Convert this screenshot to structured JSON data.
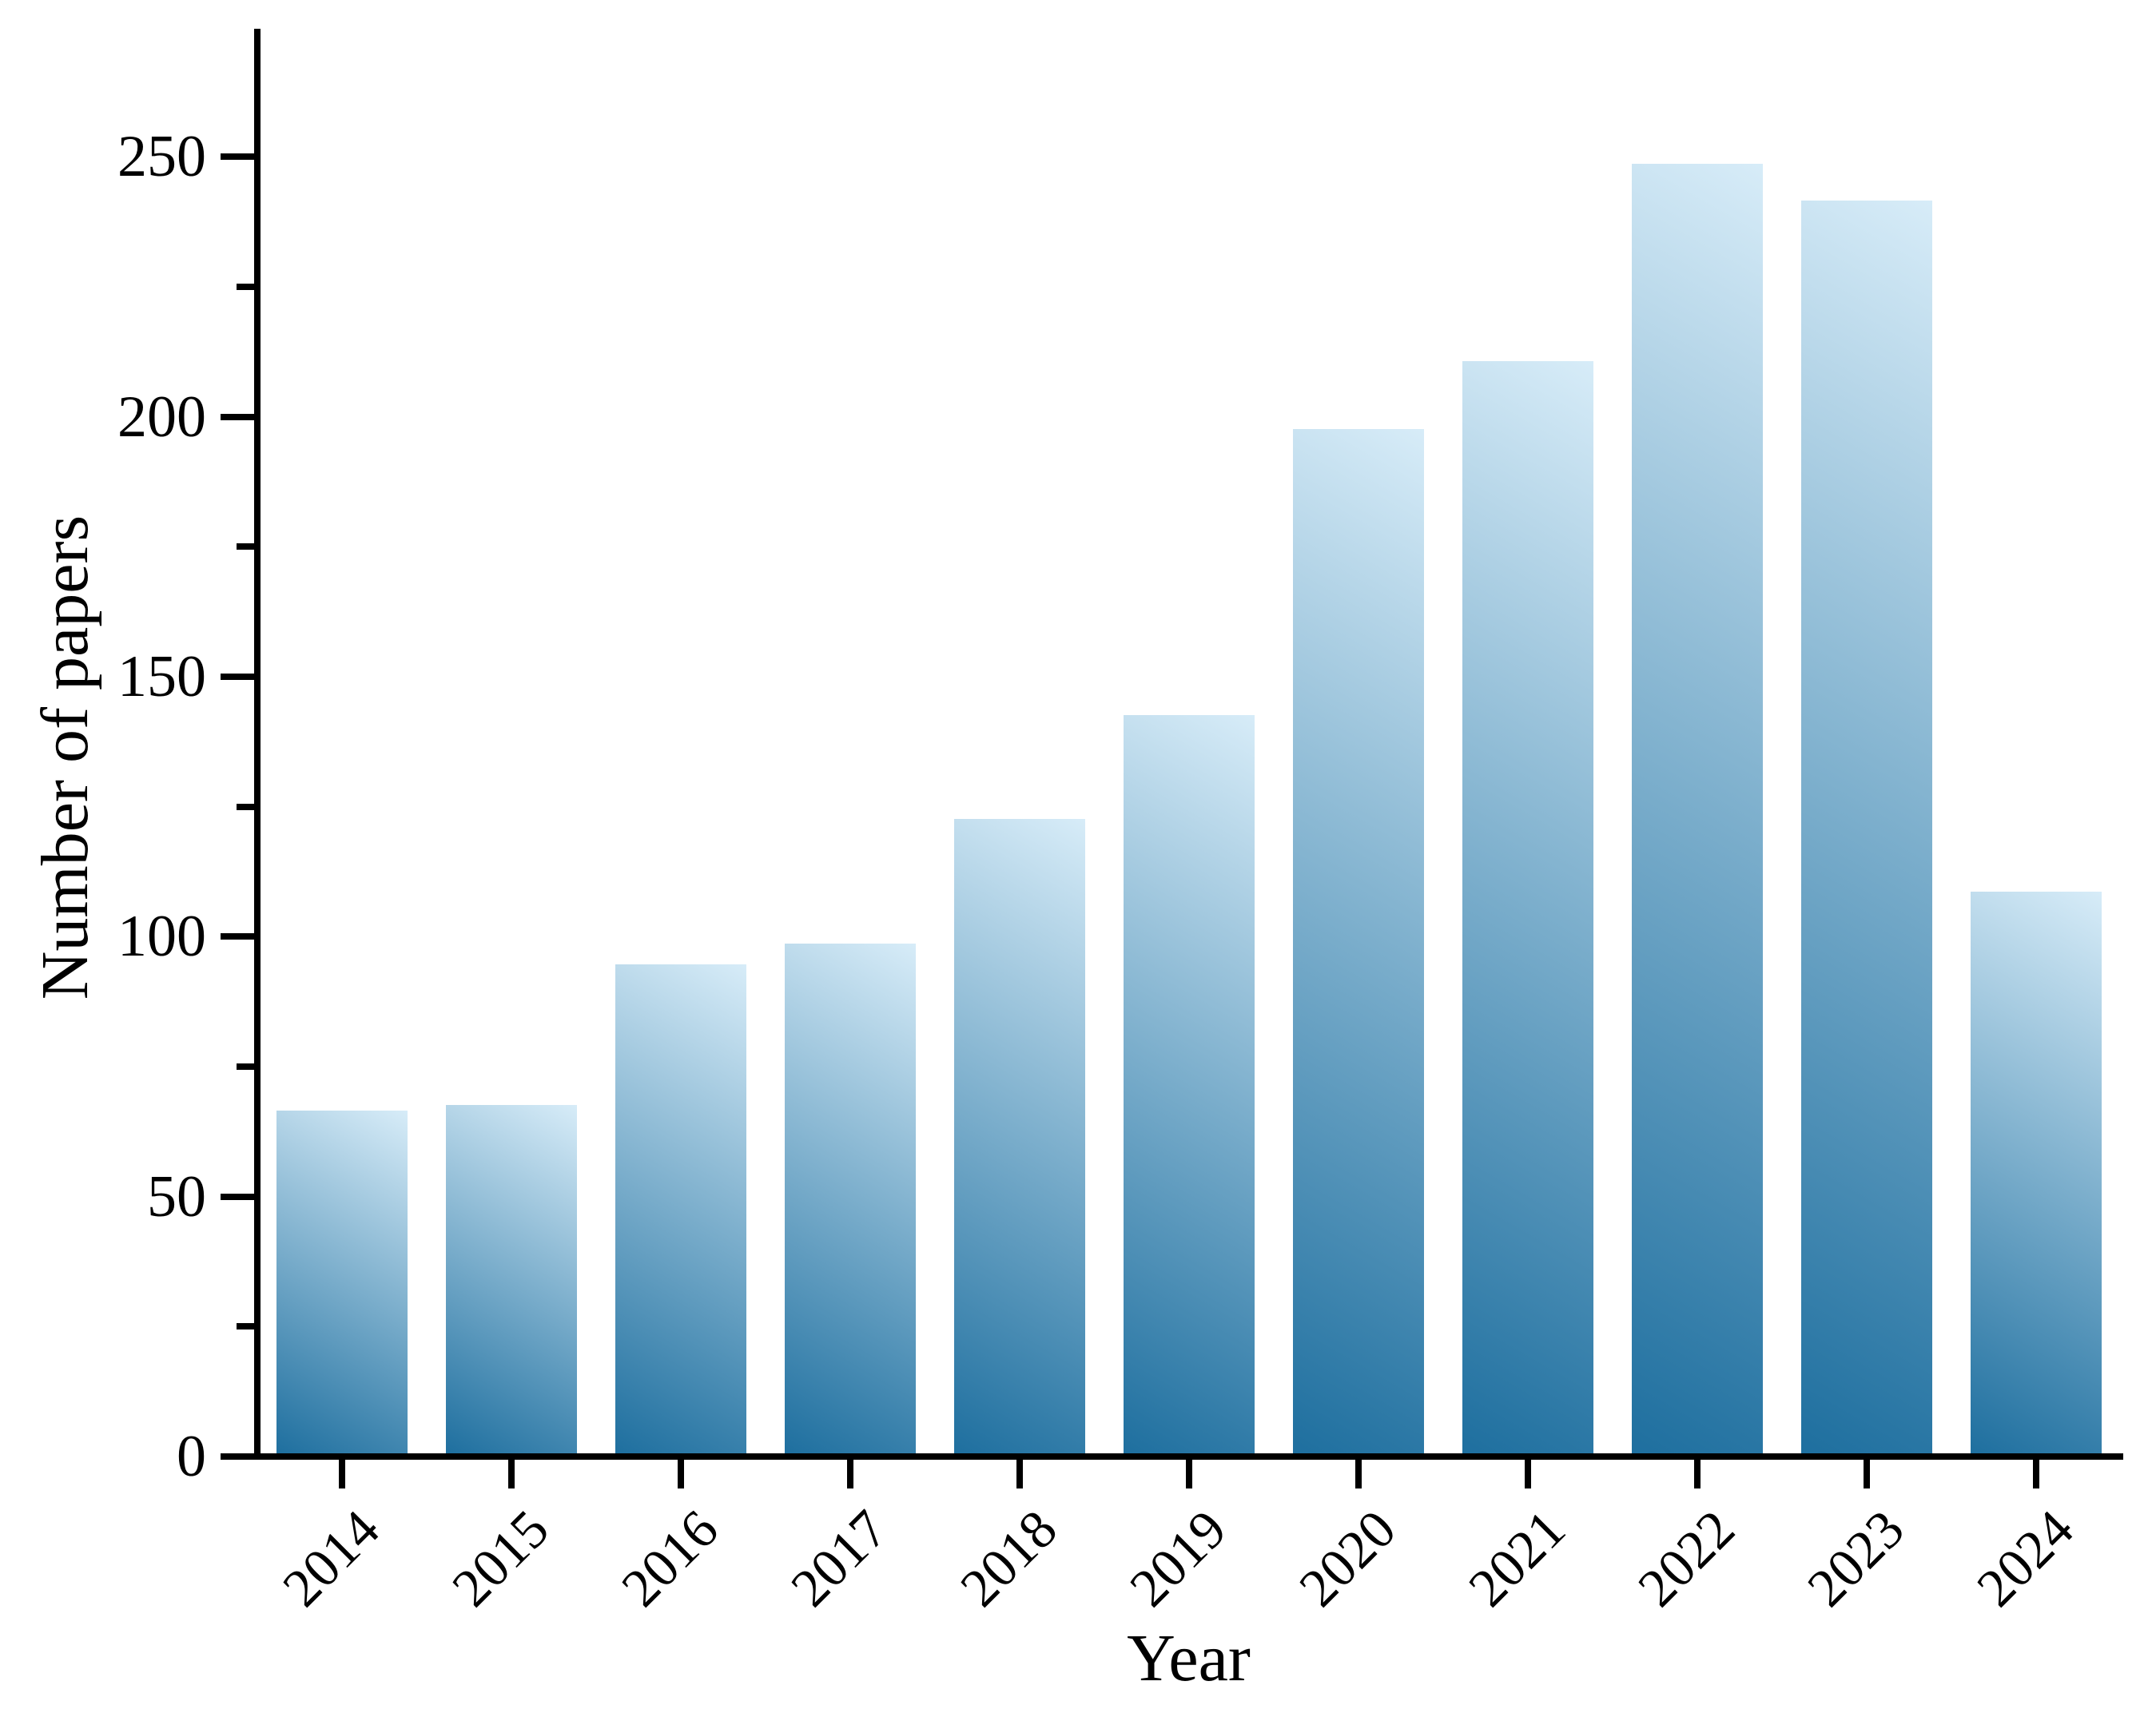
{
  "figure": {
    "background": "#ffffff",
    "axis_color": "#000000"
  },
  "chart_data": {
    "type": "bar",
    "title": "",
    "xlabel": "Year",
    "ylabel": "Number of papers",
    "categories": [
      "2014",
      "2015",
      "2016",
      "2017",
      "2018",
      "2019",
      "2020",
      "2021",
      "2022",
      "2023",
      "2024"
    ],
    "values": [
      66,
      67,
      94,
      98,
      122,
      142,
      197,
      210,
      248,
      241,
      108
    ],
    "ylim": [
      0,
      274
    ],
    "yticks": [
      0,
      50,
      100,
      150,
      200,
      250
    ],
    "minor_yticks": [
      25,
      75,
      125,
      175,
      225
    ],
    "grid": false,
    "legend_position": "none",
    "xtick_label_rotation_deg": 45,
    "bar_gradient": {
      "from": "#1e6f9f",
      "to": "#d7ecf8",
      "angle_deg": 30
    }
  }
}
